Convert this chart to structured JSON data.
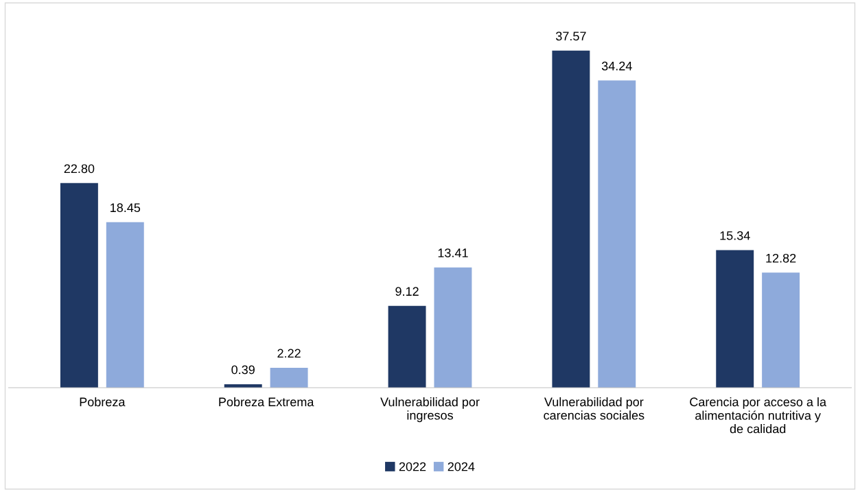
{
  "chart_data": {
    "type": "bar",
    "categories": [
      "Pobreza",
      "Pobreza Extrema",
      "Vulnerabilidad por\ningresos",
      "Vulnerabilidad por\ncarencias sociales",
      "Carencia por acceso a la\nalimentación nutritiva y\nde calidad"
    ],
    "series": [
      {
        "name": "2022",
        "color": "#1f3864",
        "values": [
          22.8,
          0.39,
          9.12,
          37.57,
          15.34
        ],
        "value_labels": [
          "22.80",
          "0.39",
          "9.12",
          "37.57",
          "15.34"
        ]
      },
      {
        "name": "2024",
        "color": "#8eaadb",
        "values": [
          18.45,
          2.22,
          13.41,
          34.24,
          12.82
        ],
        "value_labels": [
          "18.45",
          "2.22",
          "13.41",
          "34.24",
          "12.82"
        ]
      }
    ],
    "legend": "bottom",
    "grid": false
  }
}
